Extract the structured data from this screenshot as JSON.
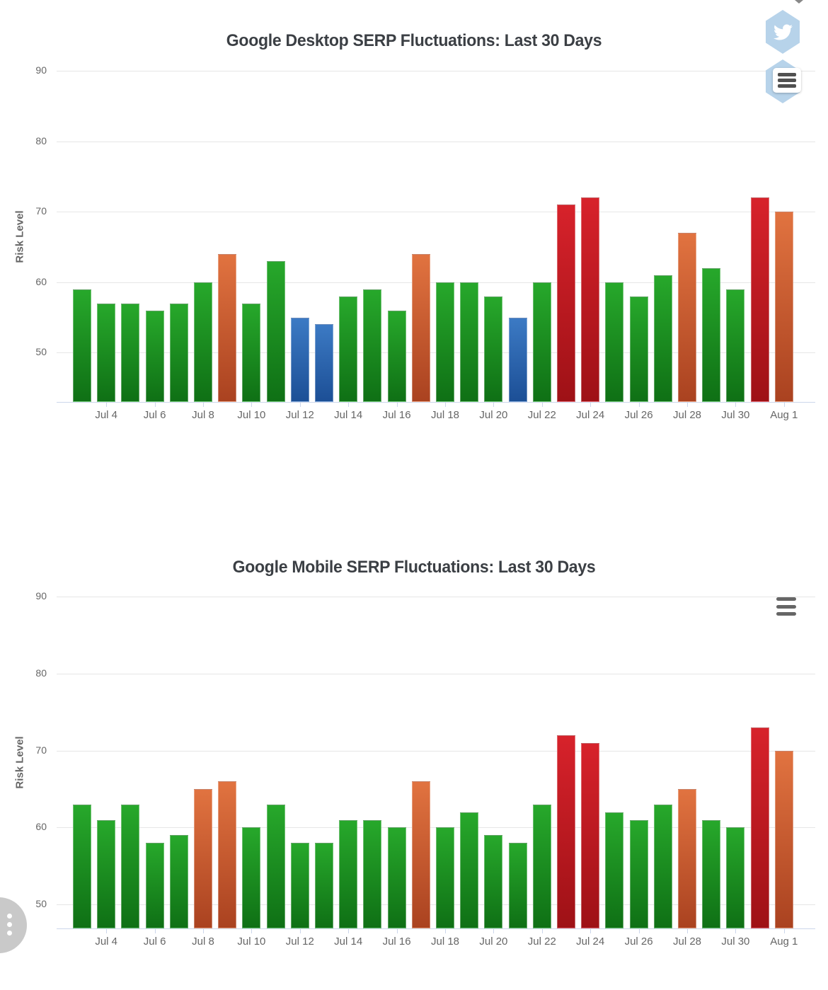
{
  "risk_palette": {
    "normal": {
      "top": "#27a82b",
      "bottom": "#0f7015"
    },
    "low": {
      "top": "#3c7ac4",
      "bottom": "#1c4f96"
    },
    "elevated": {
      "top": "#e17340",
      "bottom": "#aa4220"
    },
    "high": {
      "top": "#d7222b",
      "bottom": "#9e1116"
    }
  },
  "icons": {
    "share_twitter": "twitter-bird-in-hexagon",
    "chart_context_menu": "hamburger",
    "floating_button": "kebab-dots"
  },
  "axis_colors": {
    "gridline": "#e6e6e6",
    "axis_line": "#ccd6eb",
    "tick_text": "#666666"
  },
  "chart_data": [
    {
      "type": "bar",
      "title": "Google Desktop SERP Fluctuations: Last 30 Days",
      "xlabel": "",
      "ylabel": "Risk Level",
      "ylim": [
        43,
        90
      ],
      "yticks": [
        90,
        80,
        70,
        60,
        50
      ],
      "grid": true,
      "legend": false,
      "categories": [
        "Jul 3",
        "Jul 4",
        "Jul 5",
        "Jul 6",
        "Jul 7",
        "Jul 8",
        "Jul 9",
        "Jul 10",
        "Jul 11",
        "Jul 12",
        "Jul 13",
        "Jul 14",
        "Jul 15",
        "Jul 16",
        "Jul 17",
        "Jul 18",
        "Jul 19",
        "Jul 20",
        "Jul 21",
        "Jul 22",
        "Jul 23",
        "Jul 24",
        "Jul 25",
        "Jul 26",
        "Jul 27",
        "Jul 28",
        "Jul 29",
        "Jul 30",
        "Jul 31",
        "Aug 1"
      ],
      "xtick_labels": [
        "Jul 4",
        "Jul 6",
        "Jul 8",
        "Jul 10",
        "Jul 12",
        "Jul 14",
        "Jul 16",
        "Jul 18",
        "Jul 20",
        "Jul 22",
        "Jul 24",
        "Jul 26",
        "Jul 28",
        "Jul 30",
        "Aug 1"
      ],
      "values": [
        59,
        57,
        57,
        56,
        57,
        60,
        64,
        57,
        63,
        55,
        54,
        58,
        59,
        56,
        64,
        60,
        60,
        58,
        55,
        60,
        71,
        72,
        60,
        58,
        61,
        67,
        62,
        59,
        72,
        70
      ],
      "risk_levels": [
        "normal",
        "normal",
        "normal",
        "normal",
        "normal",
        "normal",
        "elevated",
        "normal",
        "normal",
        "low",
        "low",
        "normal",
        "normal",
        "normal",
        "elevated",
        "normal",
        "normal",
        "normal",
        "low",
        "normal",
        "high",
        "high",
        "normal",
        "normal",
        "normal",
        "elevated",
        "normal",
        "normal",
        "high",
        "elevated"
      ]
    },
    {
      "type": "bar",
      "title": "Google Mobile SERP Fluctuations: Last 30 Days",
      "xlabel": "",
      "ylabel": "Risk Level",
      "ylim": [
        46.9,
        90
      ],
      "yticks": [
        90,
        80,
        70,
        60,
        50
      ],
      "grid": true,
      "legend": false,
      "categories": [
        "Jul 3",
        "Jul 4",
        "Jul 5",
        "Jul 6",
        "Jul 7",
        "Jul 8",
        "Jul 9",
        "Jul 10",
        "Jul 11",
        "Jul 12",
        "Jul 13",
        "Jul 14",
        "Jul 15",
        "Jul 16",
        "Jul 17",
        "Jul 18",
        "Jul 19",
        "Jul 20",
        "Jul 21",
        "Jul 22",
        "Jul 23",
        "Jul 24",
        "Jul 25",
        "Jul 26",
        "Jul 27",
        "Jul 28",
        "Jul 29",
        "Jul 30",
        "Jul 31",
        "Aug 1"
      ],
      "xtick_labels": [
        "Jul 4",
        "Jul 6",
        "Jul 8",
        "Jul 10",
        "Jul 12",
        "Jul 14",
        "Jul 16",
        "Jul 18",
        "Jul 20",
        "Jul 22",
        "Jul 24",
        "Jul 26",
        "Jul 28",
        "Jul 30",
        "Aug 1"
      ],
      "values": [
        63,
        61,
        63,
        58,
        59,
        65,
        66,
        60,
        63,
        58,
        58,
        61,
        61,
        60,
        66,
        60,
        62,
        59,
        58,
        63,
        72,
        71,
        62,
        61,
        63,
        65,
        61,
        60,
        73,
        70
      ],
      "risk_levels": [
        "normal",
        "normal",
        "normal",
        "normal",
        "normal",
        "elevated",
        "elevated",
        "normal",
        "normal",
        "normal",
        "normal",
        "normal",
        "normal",
        "normal",
        "elevated",
        "normal",
        "normal",
        "normal",
        "normal",
        "normal",
        "high",
        "high",
        "normal",
        "normal",
        "normal",
        "elevated",
        "normal",
        "normal",
        "high",
        "elevated"
      ]
    }
  ]
}
